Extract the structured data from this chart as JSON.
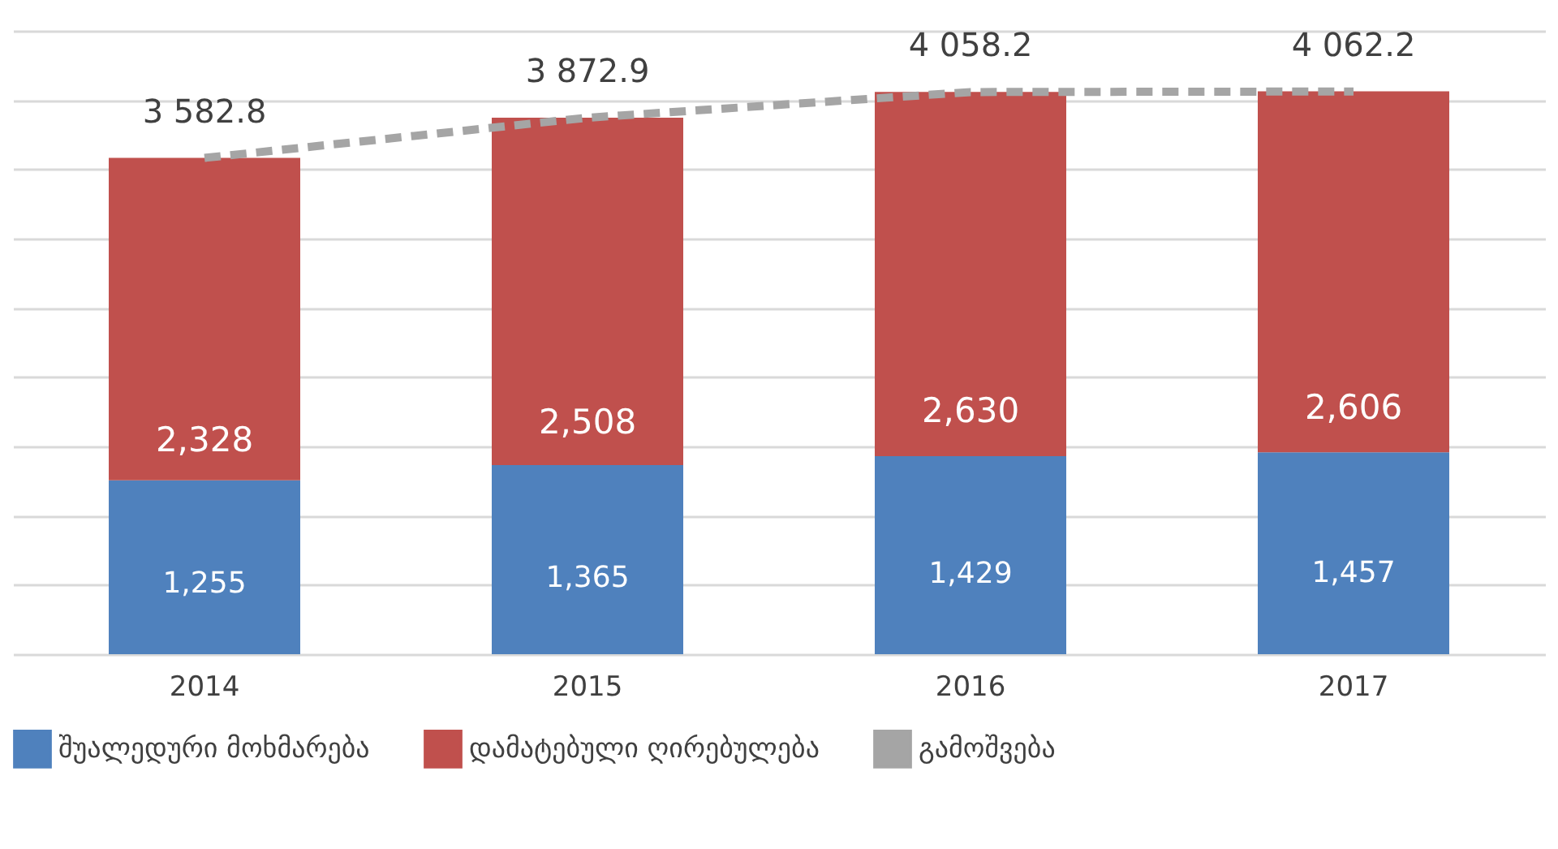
{
  "chart_data": {
    "type": "bar",
    "stacked": true,
    "categories": [
      "2014",
      "2015",
      "2016",
      "2017"
    ],
    "series": [
      {
        "name": "შუალედური მოხმარება",
        "color": "#4f81bd",
        "values": [
          1255,
          1365,
          1429,
          1457
        ],
        "value_labels": [
          "1,255",
          "1,365",
          "1,429",
          "1,457"
        ]
      },
      {
        "name": "დამატებული ღირებულება",
        "color": "#c0504d",
        "values": [
          2328,
          2508,
          2630,
          2606
        ],
        "value_labels": [
          "2,328",
          "2,508",
          "2,630",
          "2,606"
        ]
      },
      {
        "name": "გამოშვება",
        "type": "line",
        "color": "#a5a5a5",
        "line_style": "dashed",
        "marker": "none",
        "values": [
          3582.8,
          3872.9,
          4058.2,
          4062.2
        ],
        "value_labels": [
          "3 582.8",
          "3 872.9",
          "4 058.2",
          "4 062.2"
        ]
      }
    ],
    "ylim": [
      0,
      4500
    ],
    "yticks": [
      {
        "value": 0,
        "label": null
      },
      {
        "value": 500,
        "label": null
      },
      {
        "value": 1000,
        "label": null
      },
      {
        "value": 1500,
        "label": null
      },
      {
        "value": 2000,
        "label": null
      },
      {
        "value": 2500,
        "label": null
      },
      {
        "value": 3000,
        "label": null
      },
      {
        "value": 3500,
        "label": null
      },
      {
        "value": 4000,
        "label": null
      },
      {
        "value": 4500,
        "label": null
      }
    ],
    "grid": "y",
    "tick_labels": "x",
    "legend": "bottom"
  }
}
